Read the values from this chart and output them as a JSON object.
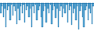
{
  "values": [
    -1.5,
    -0.5,
    -2.0,
    -0.8,
    -3.5,
    -1.0,
    -0.5,
    -2.5,
    -0.3,
    -1.8,
    -0.5,
    -1.2,
    -3.0,
    -0.8,
    -2.5,
    -0.5,
    -1.5,
    -0.3,
    -2.8,
    -1.0,
    -0.5,
    -2.0,
    -0.8,
    -3.5,
    -0.5,
    -1.5,
    -0.3,
    -2.5,
    -1.0,
    -0.5,
    -2.0,
    -3.5,
    -1.2,
    -0.5,
    -2.8,
    -0.8,
    -1.5,
    -0.3,
    -3.0,
    -1.0,
    -0.5,
    -2.2,
    -0.8,
    -3.5,
    -1.2,
    -0.5,
    -2.0,
    -0.8,
    -1.5,
    -0.3,
    -2.8,
    -1.0,
    -0.5,
    -3.2,
    -1.5,
    -0.8,
    -2.5,
    -0.5,
    -3.8,
    -1.2,
    -0.5,
    -2.0,
    -3.5,
    -1.0,
    -0.5,
    -2.5,
    -0.8,
    -1.5,
    -3.0,
    -0.5
  ],
  "bar_color": "#5ba8d4",
  "edge_color": "#2176ae",
  "background_color": "#ffffff",
  "ylim": [
    -4.5,
    0.5
  ]
}
